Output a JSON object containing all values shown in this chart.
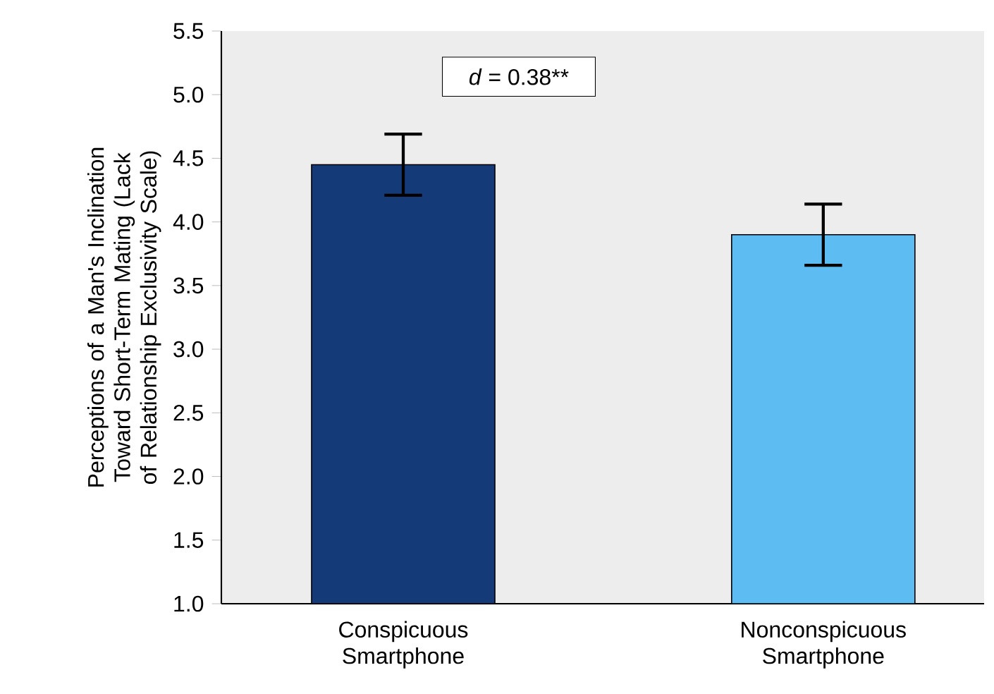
{
  "chart_data": {
    "type": "bar",
    "ylabel": "Perceptions of a Man's Inclination Toward Short-Term Mating (Lack of Relationship  Exclusivity Scale)",
    "categories": [
      "Conspicuous Smartphone",
      "Nonconspicuous Smartphone"
    ],
    "values": [
      4.45,
      3.9
    ],
    "errors": [
      0.24,
      0.24
    ],
    "colors": [
      "#143a78",
      "#5dbdf2"
    ],
    "ylim": [
      1.0,
      5.5
    ],
    "yticks": [
      {
        "value": 1.0,
        "label": "1.0"
      },
      {
        "value": 1.5,
        "label": "1.5"
      },
      {
        "value": 2.0,
        "label": "2.0"
      },
      {
        "value": 2.5,
        "label": "2.5"
      },
      {
        "value": 3.0,
        "label": "3.0"
      },
      {
        "value": 3.5,
        "label": "3.5"
      },
      {
        "value": 4.0,
        "label": "4.0"
      },
      {
        "value": 4.5,
        "label": "4.5"
      },
      {
        "value": 5.0,
        "label": "5.0"
      },
      {
        "value": 5.5,
        "label": "5.5"
      }
    ],
    "annotations": [
      "*d* = 0.38**"
    ],
    "grid": false
  }
}
